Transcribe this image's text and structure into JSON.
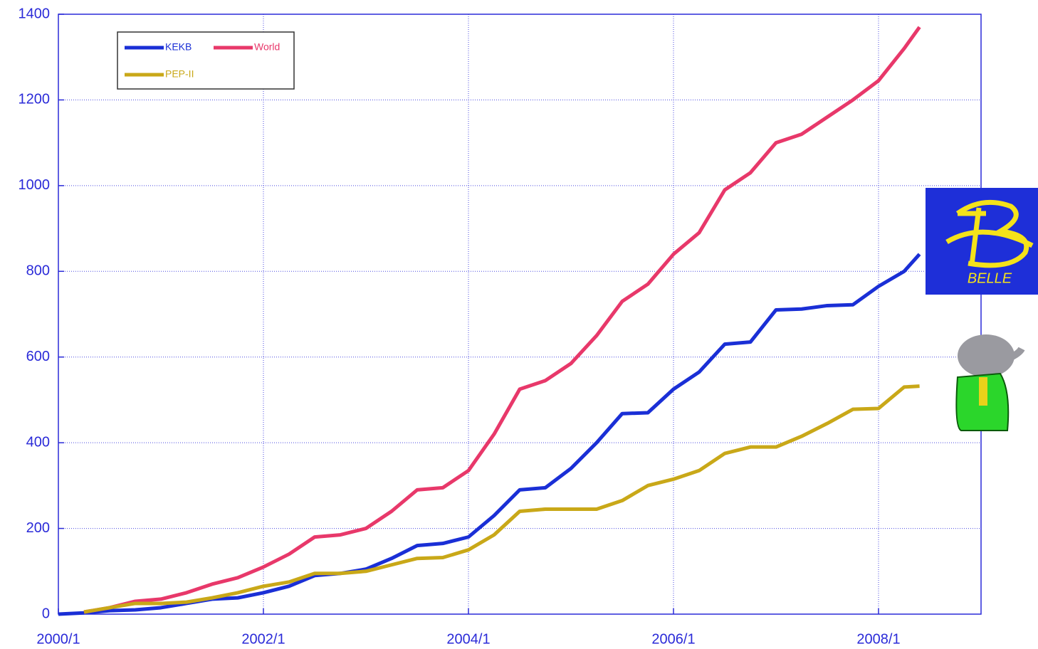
{
  "chart_data": {
    "type": "line",
    "x": [
      2000,
      2000.25,
      2000.5,
      2000.75,
      2001,
      2001.25,
      2001.5,
      2001.75,
      2002,
      2002.25,
      2002.5,
      2002.75,
      2003,
      2003.25,
      2003.5,
      2003.75,
      2004,
      2004.25,
      2004.5,
      2004.75,
      2005,
      2005.25,
      2005.5,
      2005.75,
      2006,
      2006.25,
      2006.5,
      2006.75,
      2007,
      2007.25,
      2007.5,
      2007.75,
      2008,
      2008.25,
      2008.4
    ],
    "series": [
      {
        "name": "KEKB",
        "color": "#1a2fd6",
        "values": [
          0,
          3,
          8,
          10,
          15,
          25,
          35,
          38,
          50,
          65,
          90,
          95,
          105,
          130,
          160,
          165,
          180,
          230,
          290,
          295,
          340,
          400,
          468,
          470,
          525,
          565,
          630,
          635,
          710,
          712,
          720,
          722,
          765,
          800,
          840
        ]
      },
      {
        "name": "World",
        "color": "#e8386a",
        "values": [
          null,
          5,
          15,
          30,
          35,
          50,
          70,
          85,
          110,
          140,
          180,
          185,
          200,
          240,
          290,
          295,
          335,
          420,
          525,
          545,
          585,
          650,
          730,
          770,
          840,
          890,
          990,
          1030,
          1100,
          1120,
          1160,
          1200,
          1245,
          1320,
          1370
        ]
      },
      {
        "name": "PEP-II",
        "color": "#c9a818",
        "values": [
          null,
          5,
          15,
          25,
          25,
          28,
          38,
          50,
          65,
          75,
          95,
          95,
          100,
          115,
          130,
          132,
          150,
          185,
          240,
          245,
          245,
          245,
          265,
          300,
          315,
          335,
          375,
          390,
          390,
          415,
          445,
          478,
          480,
          530,
          532
        ]
      }
    ],
    "xlim": [
      2000,
      2009
    ],
    "ylim": [
      0,
      1400
    ],
    "xticks": [
      {
        "value": 2000,
        "label": "2000/1"
      },
      {
        "value": 2002,
        "label": "2002/1"
      },
      {
        "value": 2004,
        "label": "2004/1"
      },
      {
        "value": 2006,
        "label": "2006/1"
      },
      {
        "value": 2008,
        "label": "2008/1"
      }
    ],
    "yticks": [
      0,
      200,
      400,
      600,
      800,
      1000,
      1200,
      1400
    ],
    "grid": true,
    "legend": "upper left"
  },
  "logo": {
    "text": "BELLE"
  }
}
